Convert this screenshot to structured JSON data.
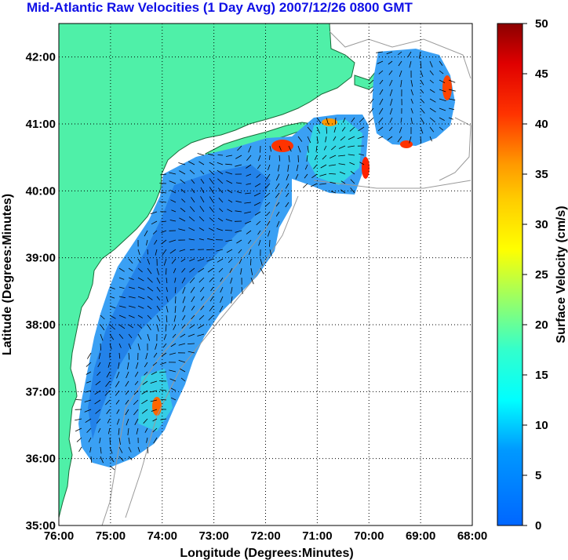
{
  "title": "Mid-Atlantic Raw Velocities (1 Day Avg) 2007/12/26 0800 GMT",
  "map": {
    "xlabel": "Longitude (Degrees:Minutes)",
    "ylabel": "Latitude (Degrees:Minutes)",
    "x_ticks": [
      "76:00",
      "75:00",
      "74:00",
      "73:00",
      "72:00",
      "71:00",
      "70:00",
      "69:00",
      "68:00"
    ],
    "y_ticks": [
      "42:00",
      "41:00",
      "40:00",
      "39:00",
      "38:00",
      "37:00",
      "36:00",
      "35:00"
    ],
    "lon_range": [
      -76,
      -68
    ],
    "lat_range": [
      35,
      42.5
    ],
    "colors": {
      "land": "#4ff0a8",
      "water": "#ffffff",
      "grid": "#000000",
      "contour": "#9a9a9a"
    }
  },
  "colorbar": {
    "label": "Surface Velocity (cm/s)",
    "ticks": [
      "0",
      "5",
      "10",
      "15",
      "20",
      "25",
      "30",
      "35",
      "40",
      "45",
      "50"
    ],
    "range": [
      0,
      50
    ]
  }
}
